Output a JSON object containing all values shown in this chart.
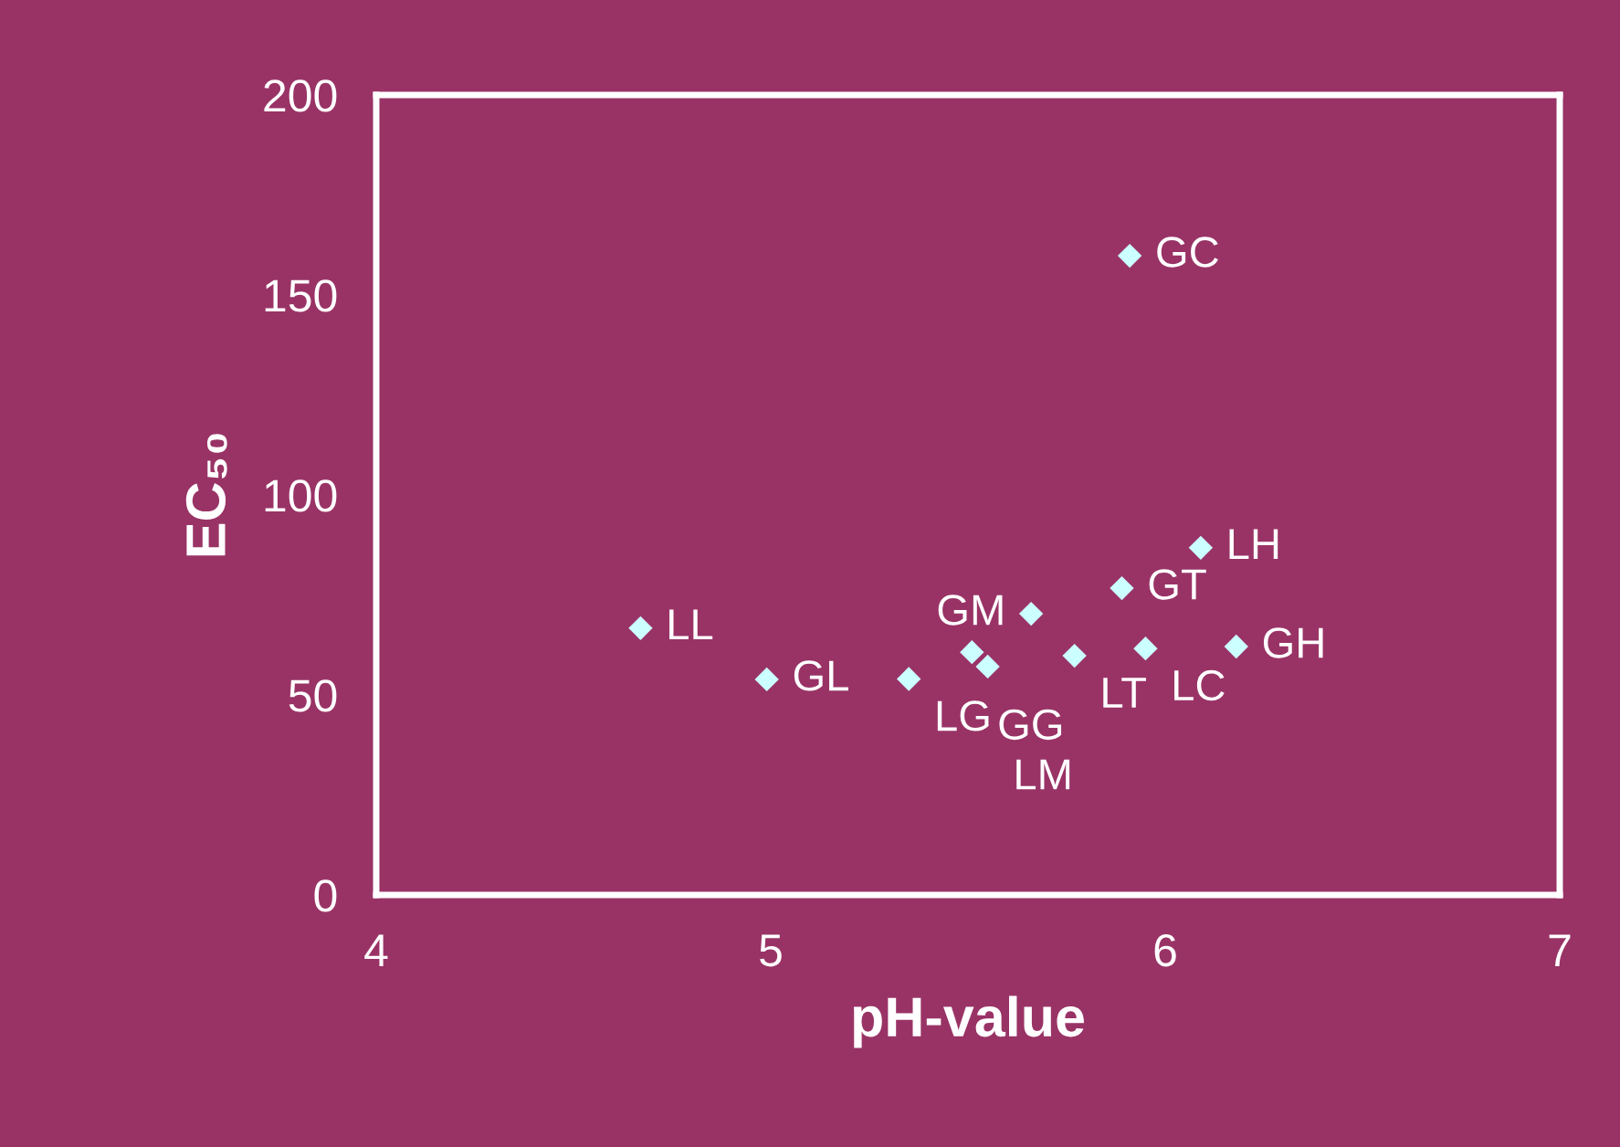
{
  "chart_data": {
    "type": "scatter",
    "xlabel": "pH-value",
    "ylabel": "EC₅₀",
    "x": [
      4.67,
      4.99,
      5.35,
      5.91,
      6.09,
      5.89,
      5.66,
      5.51,
      5.55,
      5.77,
      5.95,
      6.18
    ],
    "series": [
      {
        "color": "#ccffff",
        "values": [
          66.7,
          53.9,
          54,
          159.8,
          86.8,
          76.7,
          70.3,
          60.7,
          57.1,
          59.8,
          61.6,
          62.1
        ]
      }
    ],
    "marker": "diamond",
    "xlim": [
      4,
      7
    ],
    "xticks": [
      4,
      5,
      6,
      7
    ],
    "ylim": [
      0,
      200
    ],
    "yticks": [
      0,
      50,
      100,
      150,
      200
    ],
    "grid": false,
    "legend": false,
    "annotations": [
      {
        "text": "LL",
        "x": 4.67,
        "y": 66.7
      },
      {
        "text": "GL",
        "x": 4.99,
        "y": 53.9
      },
      {
        "text": "LG",
        "x": 5.35,
        "y": 54
      },
      {
        "text": "GC",
        "x": 5.91,
        "y": 159.8
      },
      {
        "text": "LH",
        "x": 6.09,
        "y": 86.8
      },
      {
        "text": "GT",
        "x": 5.89,
        "y": 76.7
      },
      {
        "text": "GM",
        "x": 5.66,
        "y": 70.3
      },
      {
        "text": "GG",
        "x": 5.51,
        "y": 60.7
      },
      {
        "text": "LM",
        "x": 5.55,
        "y": 57.1
      },
      {
        "text": "LT",
        "x": 5.77,
        "y": 59.8
      },
      {
        "text": "LC",
        "x": 5.95,
        "y": 61.6
      },
      {
        "text": "GH",
        "x": 6.18,
        "y": 62.1
      }
    ]
  }
}
